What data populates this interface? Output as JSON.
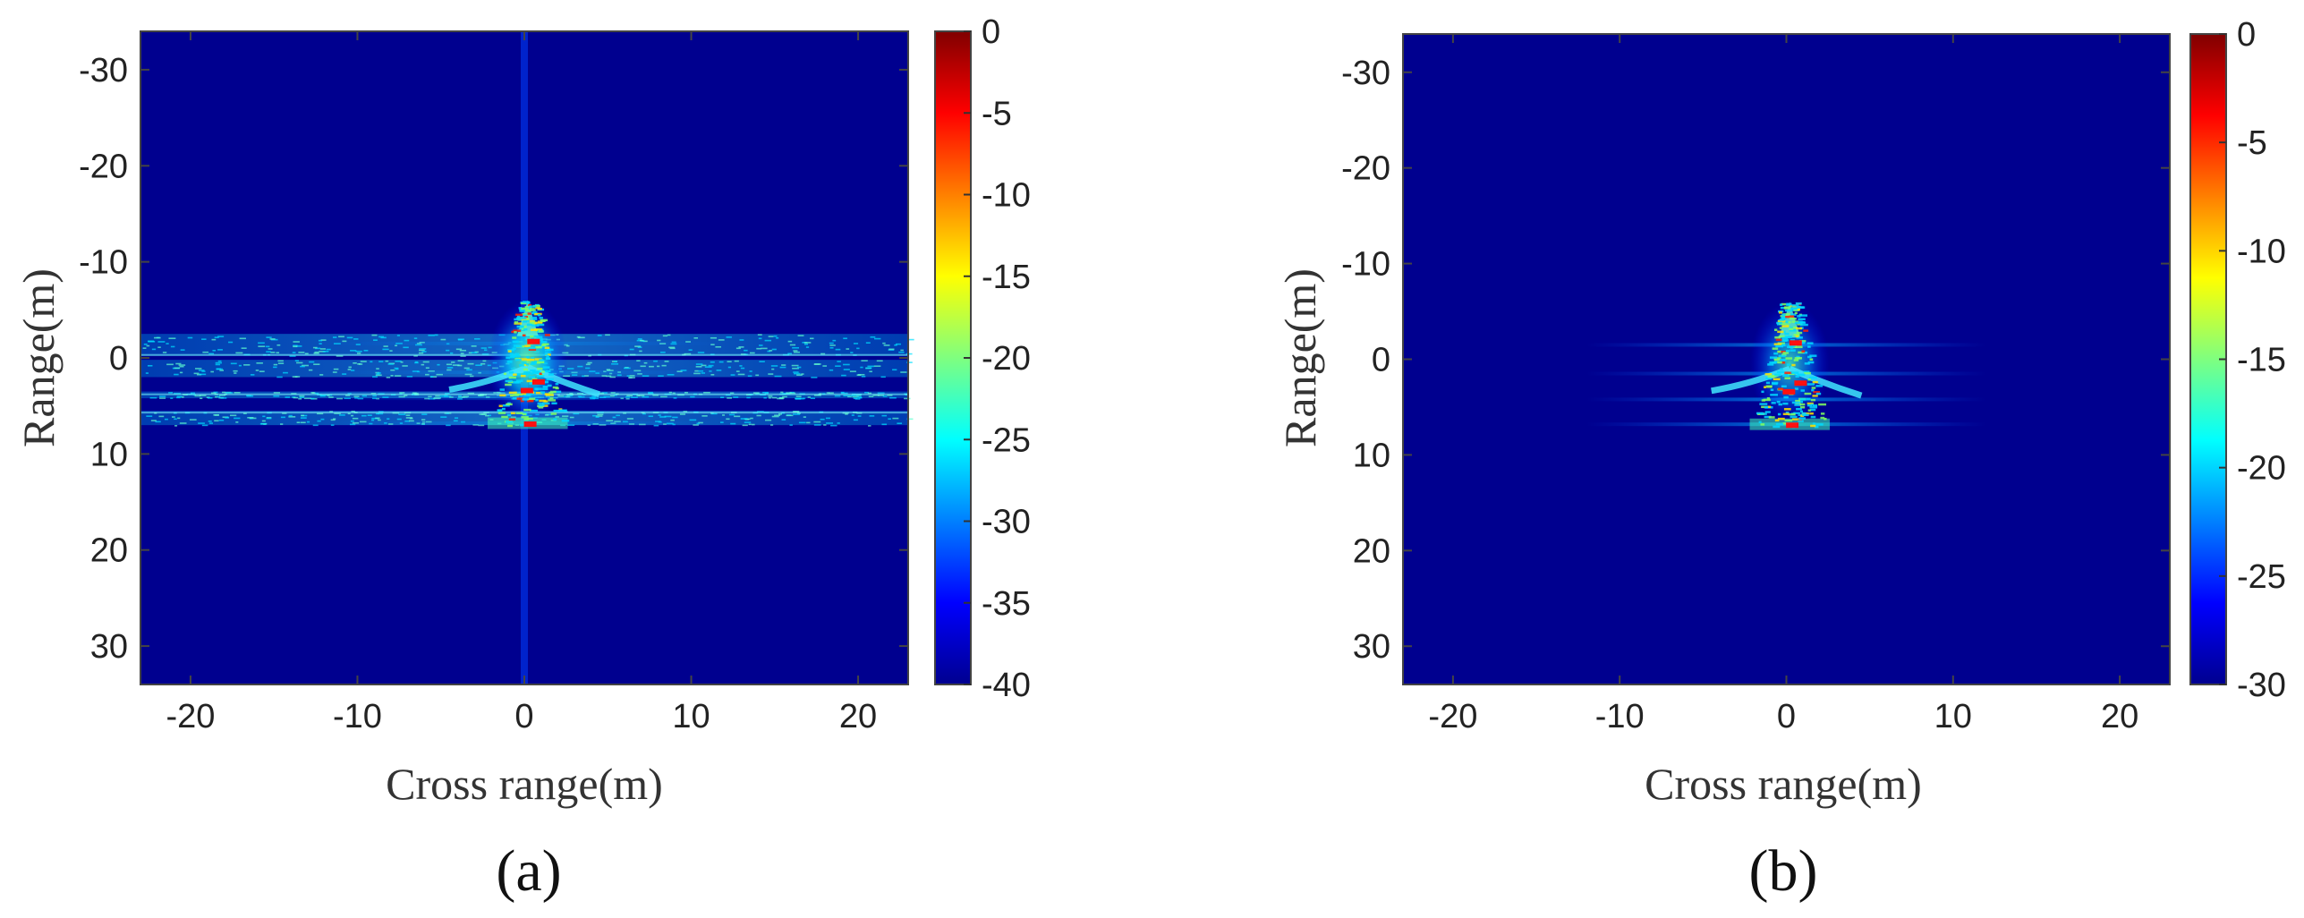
{
  "panel_labels": [
    "(a)",
    "(b)"
  ],
  "chart_data": [
    {
      "type": "heatmap",
      "panel": "(a)",
      "xlabel": "Cross range(m)",
      "ylabel": "Range(m)",
      "xlim": [
        -23,
        23
      ],
      "ylim": [
        -34,
        34
      ],
      "y_reversed": true,
      "xticks": [
        -20,
        -10,
        0,
        10,
        20
      ],
      "yticks": [
        -30,
        -20,
        -10,
        0,
        10,
        20,
        30
      ],
      "colormap": "jet",
      "clim": [
        -40,
        0
      ],
      "colorbar_ticks": [
        0,
        -5,
        -10,
        -15,
        -20,
        -25,
        -30,
        -35,
        -40
      ],
      "background_color": "#00008f",
      "features": {
        "horizontal_clutter_bands": [
          {
            "range_from": -2.5,
            "range_to": -0.2,
            "level_db": -28
          },
          {
            "range_from": 0.2,
            "range_to": 2.0,
            "level_db": -31
          },
          {
            "range_from": 3.5,
            "range_to": 4.2,
            "level_db": -30
          },
          {
            "range_from": 5.5,
            "range_to": 7.0,
            "level_db": -31
          }
        ],
        "vertical_sidelobe_cross_range": 0,
        "target_extent_cross_range": [
          -4.5,
          4.5
        ],
        "target_extent_range": [
          -6,
          7
        ]
      }
    },
    {
      "type": "heatmap",
      "panel": "(b)",
      "xlabel": "Cross range(m)",
      "ylabel": "Range(m)",
      "xlim": [
        -23,
        23
      ],
      "ylim": [
        -34,
        34
      ],
      "y_reversed": true,
      "xticks": [
        -20,
        -10,
        0,
        10,
        20
      ],
      "yticks": [
        -30,
        -20,
        -10,
        0,
        10,
        20,
        30
      ],
      "colormap": "jet",
      "clim": [
        -30,
        0
      ],
      "colorbar_ticks": [
        0,
        -5,
        -10,
        -15,
        -20,
        -25,
        -30
      ],
      "background_color": "#00008f",
      "features": {
        "horizontal_clutter_bands": [],
        "target_extent_cross_range": [
          -4.5,
          4.5
        ],
        "target_extent_range": [
          -6,
          7
        ]
      }
    }
  ]
}
